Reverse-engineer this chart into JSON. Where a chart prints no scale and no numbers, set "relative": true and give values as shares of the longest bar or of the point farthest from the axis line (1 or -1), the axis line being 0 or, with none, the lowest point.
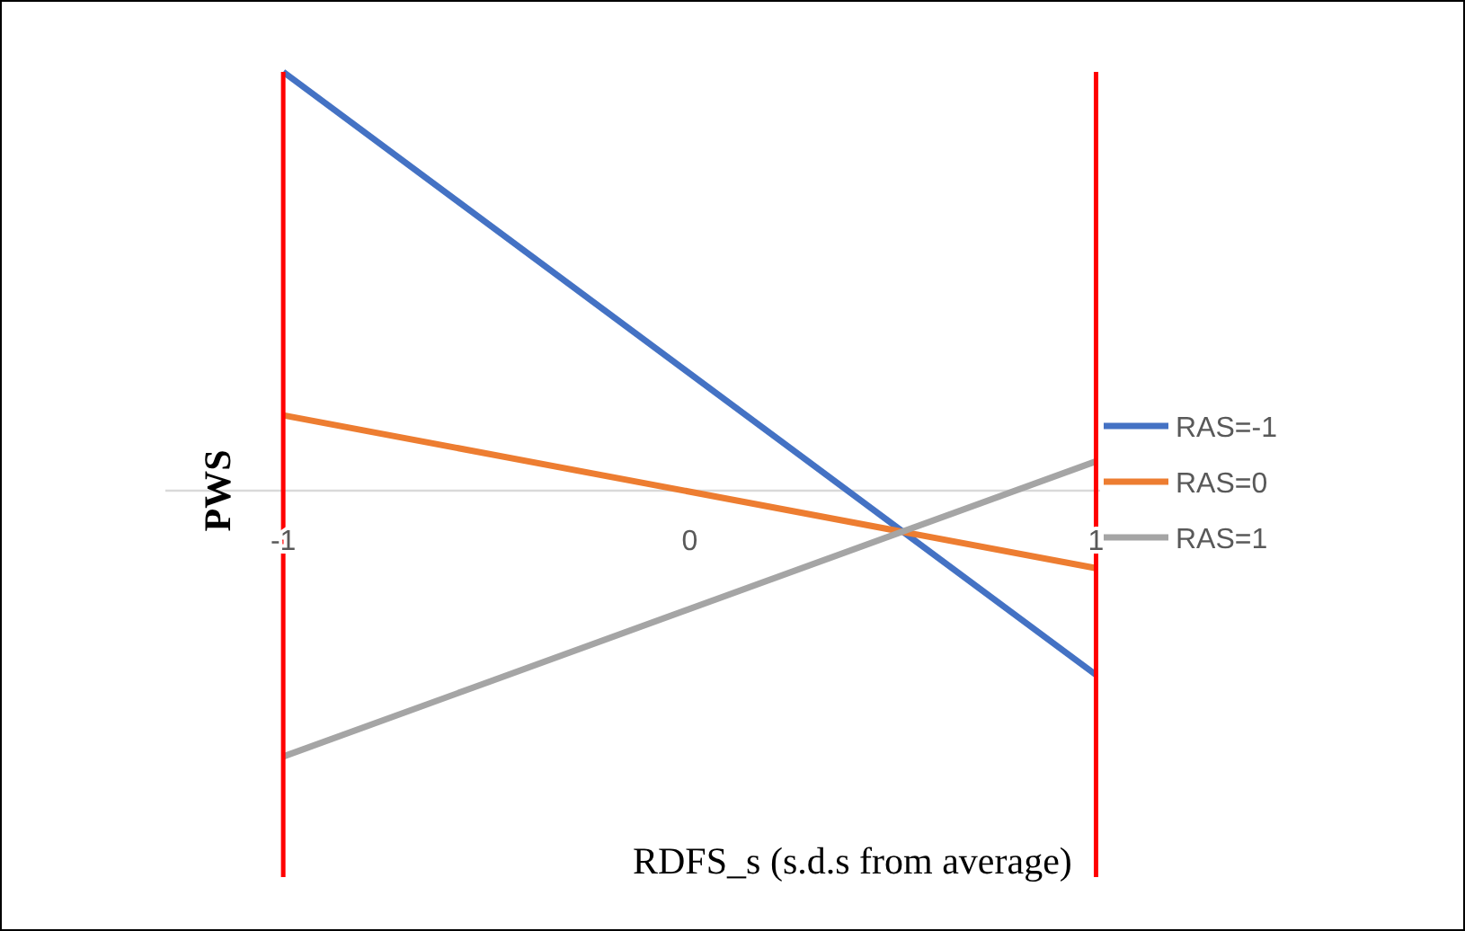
{
  "chart_data": {
    "type": "line",
    "xlabel": "RDFS_s (s.d.s from average)",
    "ylabel": "PWS",
    "relative": true,
    "x": [
      -1,
      1
    ],
    "xlim": [
      -1.29,
      1.01
    ],
    "xticks": [
      -1,
      0,
      1
    ],
    "series": [
      {
        "name": "RAS=-1",
        "color": "#4472c4",
        "values": [
          1,
          -0.44
        ]
      },
      {
        "name": "RAS=0",
        "color": "#ed7d31",
        "values": [
          0.18,
          -0.185
        ]
      },
      {
        "name": "RAS=1",
        "color": "#a5a5a5",
        "values": [
          -0.635,
          0.07
        ]
      }
    ],
    "ref_lines": [
      {
        "axis": "x",
        "value": -1,
        "color": "#ff0000"
      },
      {
        "axis": "x",
        "value": 1,
        "color": "#ff0000"
      }
    ],
    "legend": "right",
    "marker": "none",
    "line_style": "solid"
  }
}
